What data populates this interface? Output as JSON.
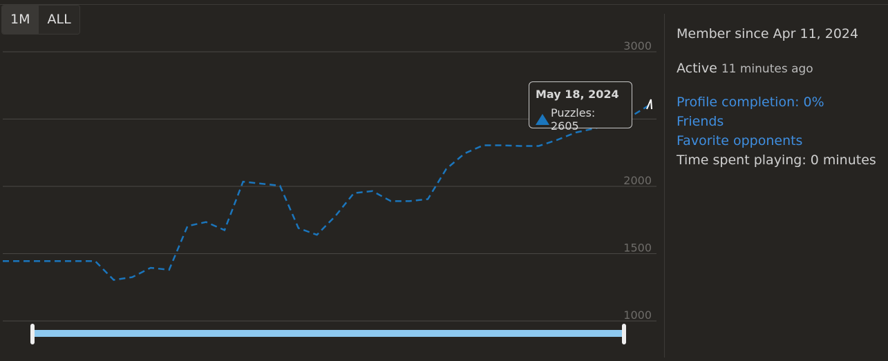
{
  "range_buttons": [
    {
      "label": "1M",
      "active": true
    },
    {
      "label": "ALL",
      "active": false
    }
  ],
  "chart_data": {
    "type": "line",
    "series": [
      {
        "name": "Puzzles",
        "color": "#1b76bd",
        "values": [
          1445,
          1445,
          1445,
          1445,
          1445,
          1445,
          1305,
          1325,
          1395,
          1380,
          1705,
          1735,
          1675,
          2035,
          2020,
          2005,
          1690,
          1640,
          1780,
          1950,
          1965,
          1890,
          1890,
          1905,
          2130,
          2245,
          2305,
          2305,
          2300,
          2300,
          2345,
          2400,
          2430,
          2470,
          2520,
          2605
        ]
      }
    ],
    "y_ticks": [
      1000,
      1500,
      2000,
      3000
    ],
    "ylim": [
      1000,
      3000
    ],
    "grid": true,
    "tooltip": {
      "date": "May 18, 2024",
      "series_label": "Puzzles: 2605"
    }
  },
  "side": {
    "member_since": "Member since Apr 11, 2024",
    "active_label": "Active",
    "active_time": "11 minutes ago",
    "profile_completion": "Profile completion: 0%",
    "friends": "Friends",
    "favorite_opponents": "Favorite opponents",
    "time_playing": "Time spent playing: 0 minutes"
  }
}
